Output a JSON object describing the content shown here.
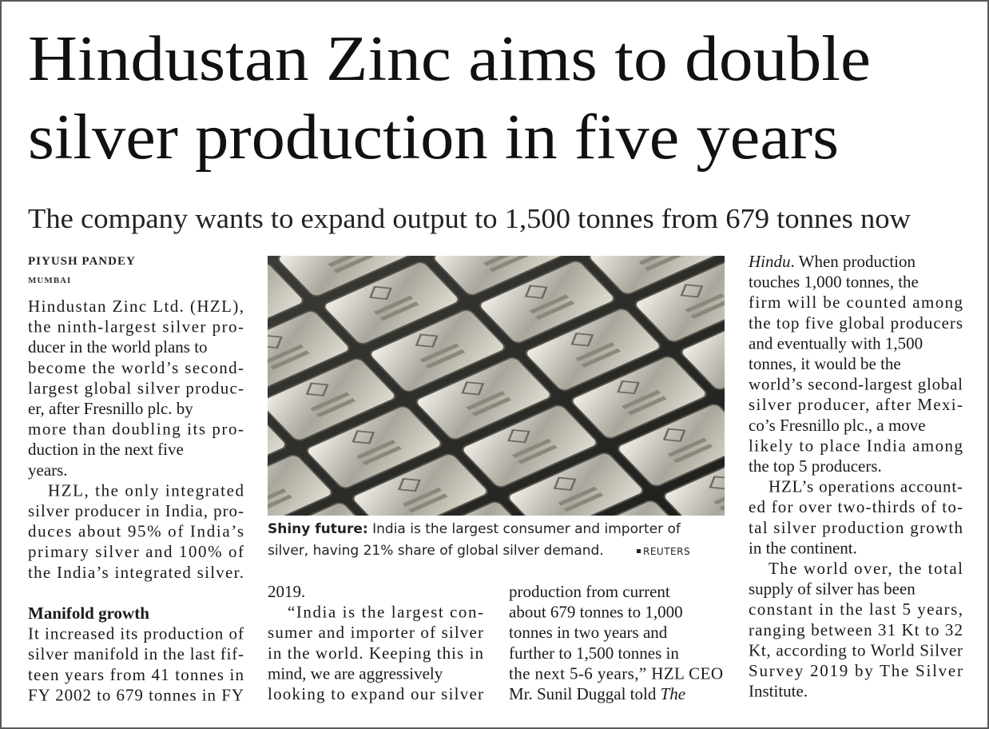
{
  "headline": [
    "Hindustan Zinc aims to double",
    "silver production in five years"
  ],
  "subheadline": "The company wants to expand output to 1,500 tonnes from 679 tonnes now",
  "byline": "PIYUSH PANDEY",
  "dateline": "MUMBAI",
  "caption": {
    "label": "Shiny future:",
    "lines": [
      "India is the largest consumer and importer of",
      "silver, having 21% share of global silver demand."
    ],
    "credit": "REUTERS"
  },
  "columns": [
    {
      "blocks": [
        {
          "paragraph": [
            "Hindustan Zinc Ltd. (HZL),",
            "the ninth-largest silver pro-",
            "ducer in the world plans to",
            "become the world’s second-",
            "largest global silver produc-",
            "er, after Fresnillo plc. by",
            "more than doubling its pro-",
            "duction in the next five",
            "years."
          ]
        },
        {
          "paragraph": [
            "HZL, the only integrated",
            "silver producer in India, pro-",
            "duces about 95% of India’s",
            "primary silver and 100% of",
            "the India’s integrated silver."
          ]
        },
        {
          "heading": "Manifold growth"
        },
        {
          "paragraph": [
            "It increased its production of",
            "silver manifold in the last fif-",
            "teen years from 41 tonnes in",
            "FY 2002 to 679 tonnes in FY"
          ]
        }
      ]
    },
    {
      "blocks": [
        {
          "paragraph": [
            "2019."
          ]
        },
        {
          "paragraph": [
            "“India is the largest con-",
            "sumer and importer of silver",
            "in the world. Keeping this in",
            "mind, we are aggressively",
            "looking to expand our silver"
          ]
        }
      ]
    },
    {
      "blocks": [
        {
          "paragraph": [
            "production from current",
            "about 679 tonnes to 1,000",
            "tonnes in two years and",
            "further to 1,500 tonnes in",
            "the next 5-6 years,” HZL CEO",
            [
              "Mr. Sunil Duggal told ",
              {
                "em": "The"
              }
            ]
          ]
        }
      ]
    },
    {
      "blocks": [
        {
          "paragraph": [
            [
              {
                "em": "Hindu"
              },
              ". When production"
            ],
            "touches 1,000 tonnes, the",
            "firm will be counted among",
            "the top five global producers",
            "and eventually with 1,500",
            "tonnes, it would be the",
            "world’s second-largest global",
            "silver producer, after Mexi-",
            "co’s Fresnillo plc., a move",
            "likely to place India among",
            "the top 5 producers."
          ]
        },
        {
          "paragraph": [
            "HZL’s operations account-",
            "ed for over two-thirds of to-",
            "tal silver production growth",
            "in the continent."
          ]
        },
        {
          "paragraph": [
            "The world over, the total",
            "supply of silver has been",
            "constant in the last 5 years,",
            "ranging between 31 Kt to 32",
            "Kt, according to World Silver",
            "Survey 2019 by The Silver",
            "Institute."
          ]
        }
      ]
    }
  ]
}
